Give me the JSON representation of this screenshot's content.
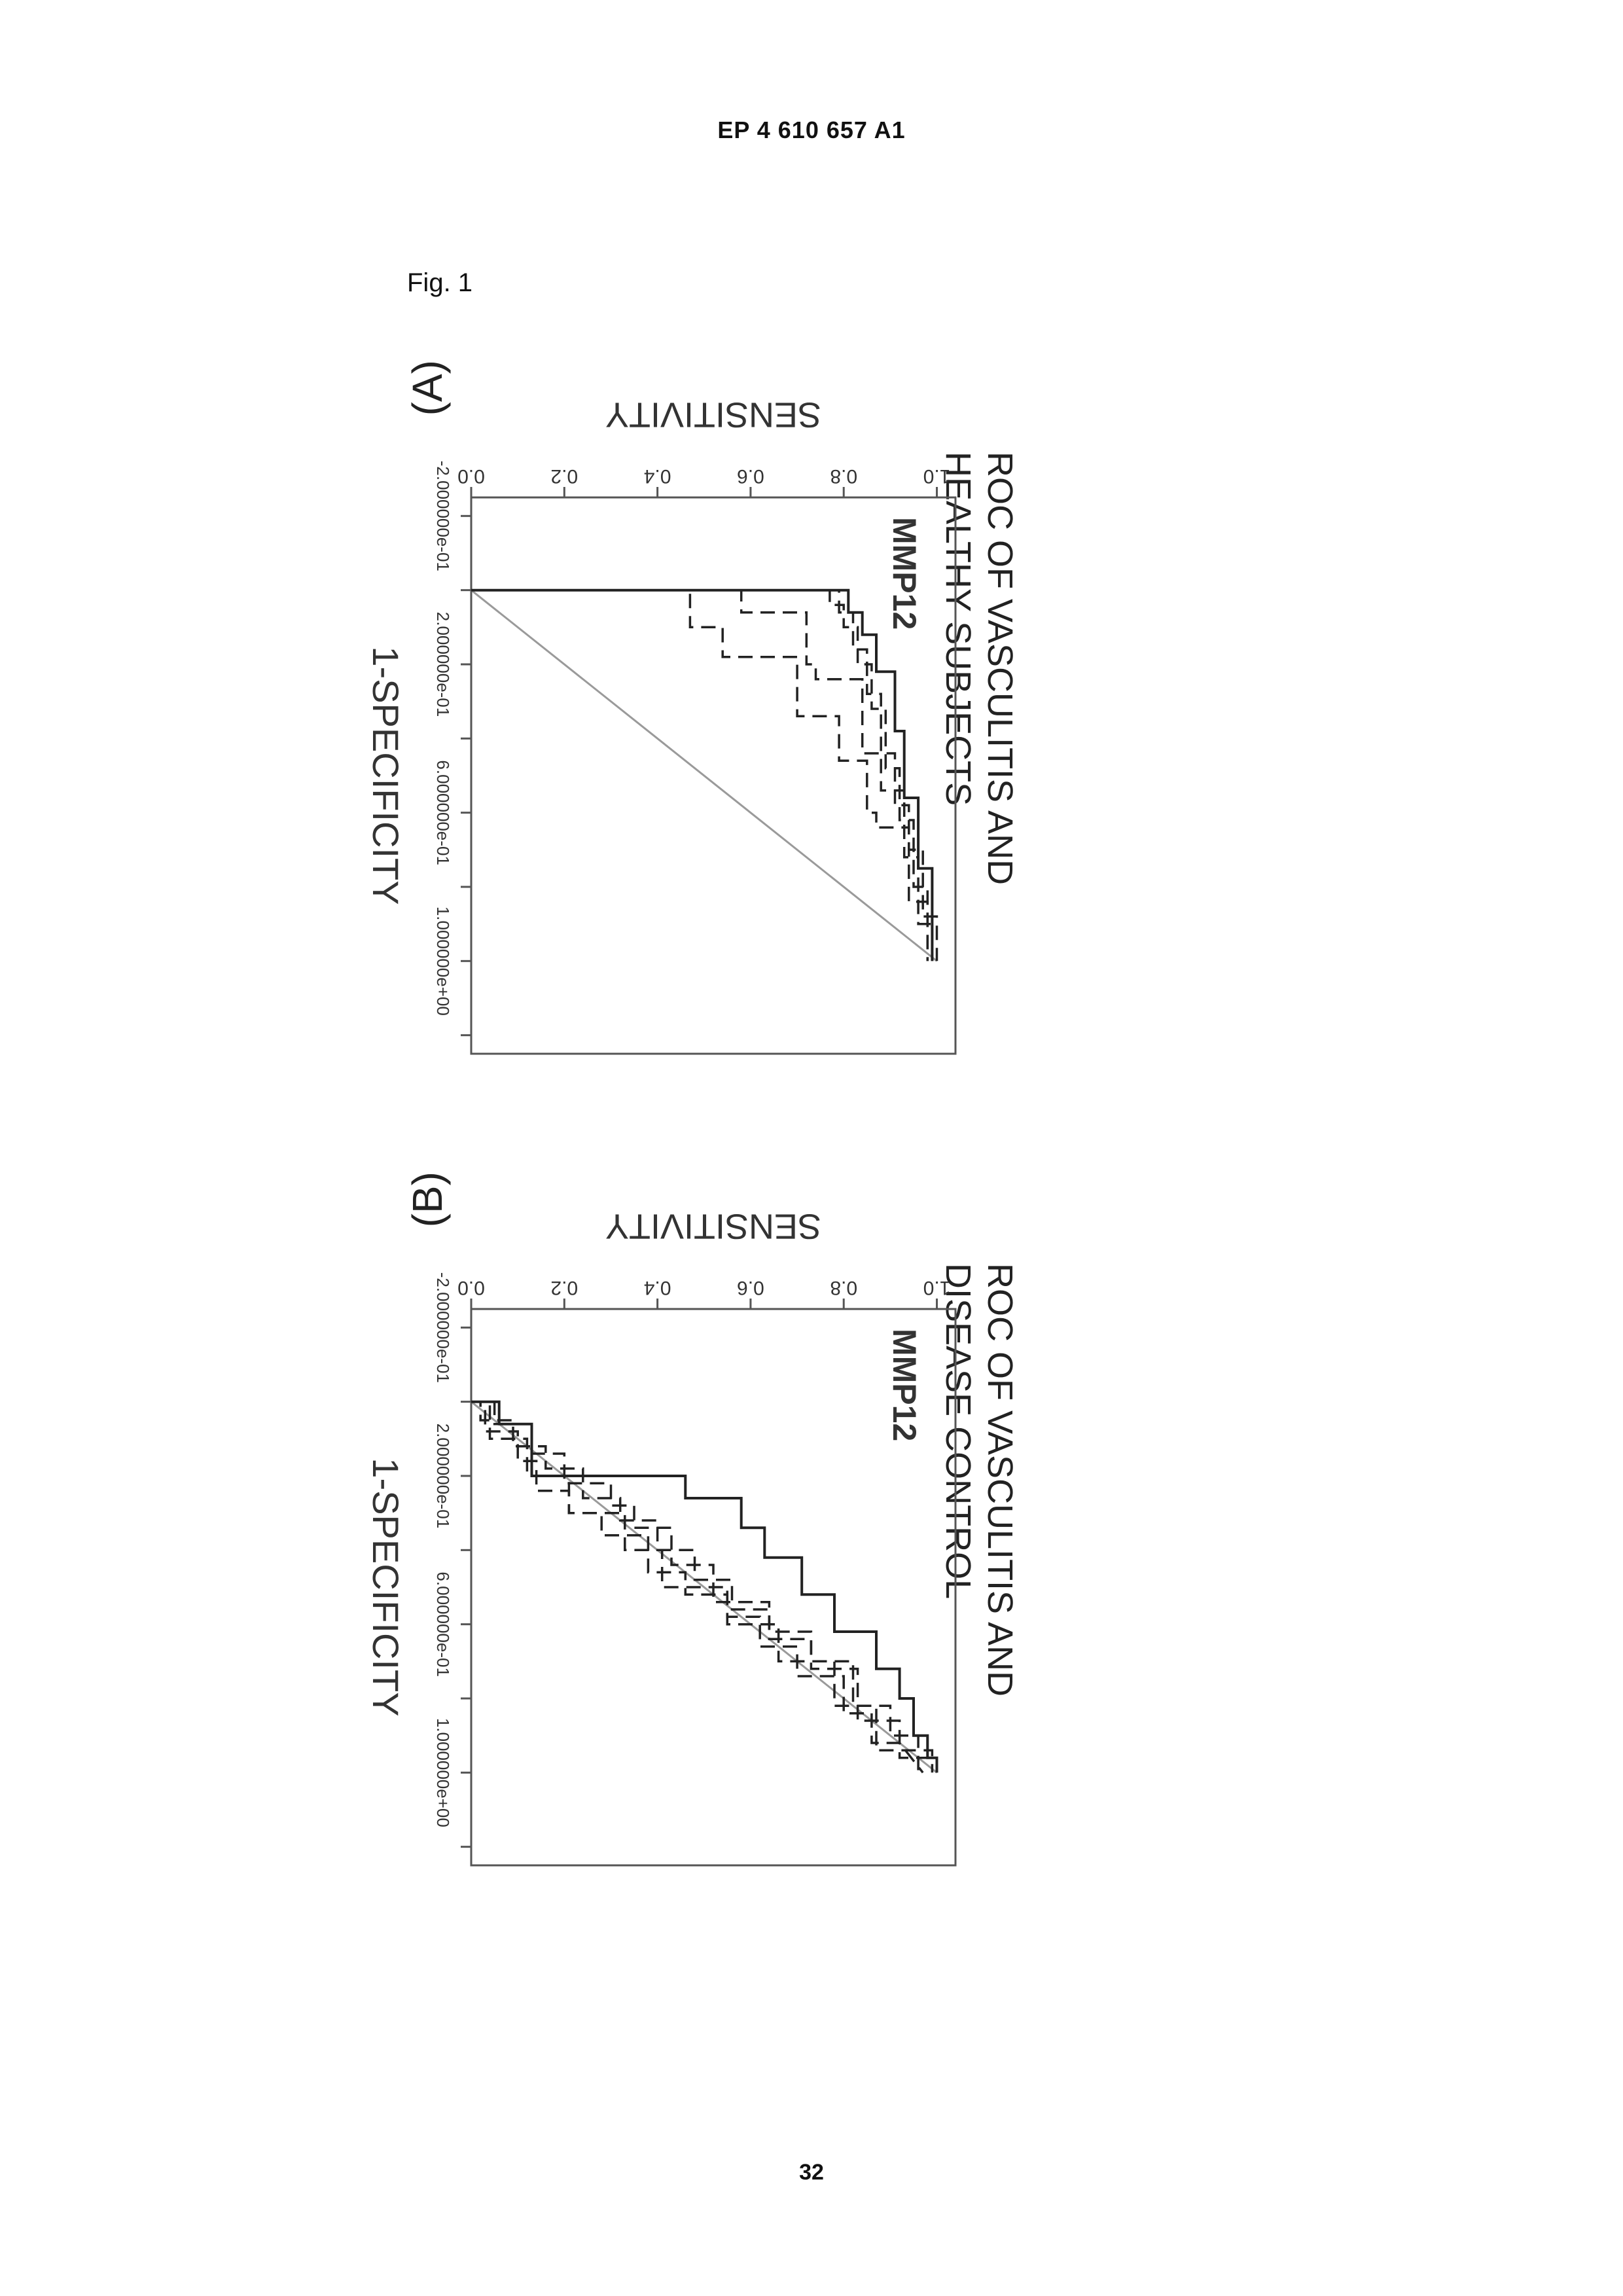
{
  "header": {
    "doc_number": "EP 4 610 657 A1"
  },
  "figure": {
    "label": "Fig. 1"
  },
  "page_number": "32",
  "chart_data": [
    {
      "type": "line",
      "panel": "(A)",
      "title_lines": [
        "ROC OF VASCULITIS AND",
        "HEALTHY SUBJECTS"
      ],
      "annotation": "MMP12",
      "xlabel": "1-SPECIFICITY",
      "ylabel": "SENSITIVITY",
      "x_ticks": [
        -0.2,
        0.0,
        0.2,
        0.4,
        0.6,
        0.8,
        1.0,
        1.2
      ],
      "x_tick_labels": [
        "-2.000000e-01",
        "",
        "2.000000e-01",
        "",
        "6.000000e-01",
        "",
        "1.000000e+00",
        ""
      ],
      "y_ticks": [
        0.0,
        0.2,
        0.4,
        0.6,
        0.8,
        1.0
      ],
      "y_tick_labels": [
        "0.0",
        "0.2",
        "0.4",
        "0.6",
        "0.8",
        "1.0"
      ],
      "xlim": [
        -0.25,
        1.25
      ],
      "ylim": [
        0.0,
        1.04
      ],
      "reference_line": {
        "x": [
          0.0,
          1.0
        ],
        "y": [
          0.0,
          1.0
        ]
      },
      "series": [
        {
          "style": "solid",
          "x": [
            0.0,
            0.0,
            0.06,
            0.06,
            0.12,
            0.12,
            0.22,
            0.22,
            0.38,
            0.38,
            0.56,
            0.56,
            0.75,
            0.75,
            1.0
          ],
          "y": [
            0.0,
            0.81,
            0.81,
            0.84,
            0.84,
            0.87,
            0.87,
            0.91,
            0.91,
            0.93,
            0.93,
            0.96,
            0.96,
            0.99,
            0.99
          ]
        },
        {
          "style": "dashed",
          "x": [
            0.0,
            0.0,
            0.04,
            0.04,
            0.1,
            0.1,
            0.2,
            0.2,
            0.32,
            0.32,
            0.48,
            0.48,
            0.62,
            0.62,
            0.8,
            0.8,
            1.0
          ],
          "y": [
            0.0,
            0.77,
            0.77,
            0.8,
            0.8,
            0.83,
            0.83,
            0.86,
            0.86,
            0.89,
            0.89,
            0.92,
            0.92,
            0.95,
            0.95,
            0.98,
            0.98
          ]
        },
        {
          "style": "dashed",
          "x": [
            0.0,
            0.0,
            0.06,
            0.06,
            0.16,
            0.16,
            0.28,
            0.28,
            0.44,
            0.44,
            0.58,
            0.58,
            0.7,
            0.7,
            0.88,
            0.88,
            1.0
          ],
          "y": [
            0.0,
            0.79,
            0.79,
            0.82,
            0.82,
            0.85,
            0.85,
            0.88,
            0.88,
            0.91,
            0.91,
            0.94,
            0.94,
            0.97,
            0.97,
            1.0,
            1.0
          ]
        },
        {
          "style": "dashed",
          "x": [
            0.0,
            0.0,
            0.06,
            0.06,
            0.2,
            0.2,
            0.24,
            0.24,
            0.44,
            0.44,
            0.54,
            0.54,
            0.72,
            0.72,
            0.9,
            0.9,
            1.0
          ],
          "y": [
            0.0,
            0.58,
            0.58,
            0.72,
            0.72,
            0.74,
            0.74,
            0.84,
            0.84,
            0.88,
            0.88,
            0.93,
            0.93,
            0.96,
            0.96,
            0.99,
            0.99
          ]
        },
        {
          "style": "dashed",
          "x": [
            0.0,
            0.0,
            0.1,
            0.1,
            0.18,
            0.18,
            0.34,
            0.34,
            0.46,
            0.46,
            0.6,
            0.6,
            0.64,
            0.64,
            0.84,
            0.84,
            1.0
          ],
          "y": [
            0.0,
            0.47,
            0.47,
            0.54,
            0.54,
            0.7,
            0.7,
            0.79,
            0.79,
            0.85,
            0.85,
            0.87,
            0.87,
            0.94,
            0.94,
            0.98,
            0.98
          ]
        }
      ]
    },
    {
      "type": "line",
      "panel": "(B)",
      "title_lines": [
        "ROC OF VASCULITIS  AND",
        "DISEASE CONTROL"
      ],
      "annotation": "MMP12",
      "xlabel": "1-SPECIFICITY",
      "ylabel": "SENSITIVITY",
      "x_ticks": [
        -0.2,
        0.0,
        0.2,
        0.4,
        0.6,
        0.8,
        1.0,
        1.2
      ],
      "x_tick_labels": [
        "-2.000000e-01",
        "",
        "2.000000e-01",
        "",
        "6.000000e-01",
        "",
        "1.000000e+00",
        ""
      ],
      "y_ticks": [
        0.0,
        0.2,
        0.4,
        0.6,
        0.8,
        1.0
      ],
      "y_tick_labels": [
        "0.0",
        "0.2",
        "0.4",
        "0.6",
        "0.8",
        "1.0"
      ],
      "xlim": [
        -0.25,
        1.25
      ],
      "ylim": [
        0.0,
        1.04
      ],
      "reference_line": {
        "x": [
          0.0,
          1.0
        ],
        "y": [
          0.0,
          1.0
        ]
      },
      "series": [
        {
          "style": "solid",
          "x": [
            0.0,
            0.0,
            0.06,
            0.06,
            0.2,
            0.2,
            0.26,
            0.26,
            0.34,
            0.34,
            0.42,
            0.42,
            0.52,
            0.52,
            0.62,
            0.62,
            0.72,
            0.72,
            0.8,
            0.8,
            0.9,
            0.9,
            0.96,
            0.96,
            1.0
          ],
          "y": [
            0.0,
            0.06,
            0.06,
            0.13,
            0.13,
            0.46,
            0.46,
            0.58,
            0.58,
            0.63,
            0.63,
            0.71,
            0.71,
            0.78,
            0.78,
            0.87,
            0.87,
            0.92,
            0.92,
            0.95,
            0.95,
            0.98,
            0.98,
            1.0,
            1.0
          ]
        },
        {
          "style": "dashed",
          "x": [
            0.0,
            0.0,
            0.08,
            0.08,
            0.16,
            0.16,
            0.24,
            0.24,
            0.3,
            0.3,
            0.36,
            0.36,
            0.46,
            0.46,
            0.52,
            0.52,
            0.58,
            0.58,
            0.66,
            0.66,
            0.74,
            0.74,
            0.84,
            0.84,
            0.92,
            0.92,
            1.0
          ],
          "y": [
            0.0,
            0.03,
            0.03,
            0.1,
            0.1,
            0.14,
            0.14,
            0.21,
            0.21,
            0.28,
            0.28,
            0.38,
            0.38,
            0.46,
            0.46,
            0.55,
            0.55,
            0.62,
            0.62,
            0.7,
            0.7,
            0.8,
            0.8,
            0.86,
            0.86,
            0.92,
            0.97
          ]
        },
        {
          "style": "dashed",
          "x": [
            0.0,
            0.0,
            0.1,
            0.1,
            0.2,
            0.2,
            0.3,
            0.3,
            0.4,
            0.4,
            0.5,
            0.5,
            0.6,
            0.6,
            0.7,
            0.7,
            0.82,
            0.82,
            0.94,
            0.94,
            1.0
          ],
          "y": [
            0.0,
            0.04,
            0.04,
            0.12,
            0.12,
            0.21,
            0.21,
            0.33,
            0.33,
            0.41,
            0.41,
            0.55,
            0.55,
            0.66,
            0.66,
            0.78,
            0.78,
            0.87,
            0.87,
            0.99,
            0.99
          ]
        },
        {
          "style": "dashed",
          "x": [
            0.0,
            0.0,
            0.06,
            0.06,
            0.14,
            0.14,
            0.22,
            0.22,
            0.28,
            0.28,
            0.34,
            0.34,
            0.44,
            0.44,
            0.54,
            0.54,
            0.62,
            0.62,
            0.72,
            0.72,
            0.86,
            0.86,
            0.96,
            0.96,
            1.0
          ],
          "y": [
            0.0,
            0.05,
            0.05,
            0.13,
            0.13,
            0.2,
            0.2,
            0.3,
            0.3,
            0.35,
            0.35,
            0.43,
            0.43,
            0.52,
            0.52,
            0.64,
            0.64,
            0.73,
            0.73,
            0.83,
            0.83,
            0.92,
            0.92,
            1.0,
            1.0
          ]
        },
        {
          "style": "dashed",
          "x": [
            0.0,
            0.0,
            0.05,
            0.05,
            0.12,
            0.12,
            0.18,
            0.18,
            0.26,
            0.26,
            0.32,
            0.32,
            0.4,
            0.4,
            0.48,
            0.48,
            0.56,
            0.56,
            0.64,
            0.64,
            0.7,
            0.7,
            0.82,
            0.82,
            0.9,
            0.9,
            1.0
          ],
          "y": [
            0.0,
            0.02,
            0.02,
            0.09,
            0.09,
            0.16,
            0.16,
            0.24,
            0.24,
            0.32,
            0.32,
            0.4,
            0.4,
            0.48,
            0.48,
            0.56,
            0.56,
            0.64,
            0.64,
            0.73,
            0.73,
            0.82,
            0.82,
            0.9,
            0.9,
            0.96,
            0.96
          ]
        }
      ]
    }
  ]
}
